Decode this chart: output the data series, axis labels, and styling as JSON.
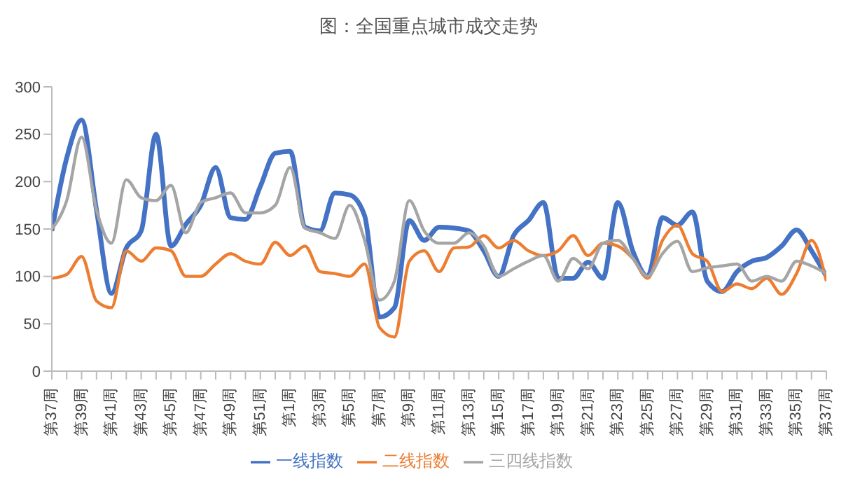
{
  "chart_data": {
    "type": "line",
    "title": "图：全国重点城市成交走势",
    "categories": [
      "第37周",
      null,
      "第39周",
      null,
      "第41周",
      null,
      "第43周",
      null,
      "第45周",
      null,
      "第47周",
      null,
      "第49周",
      null,
      "第51周",
      null,
      "第1周",
      null,
      "第3周",
      null,
      "第5周",
      null,
      "第7周",
      null,
      "第9周",
      null,
      "第11周",
      null,
      "第13周",
      null,
      "第15周",
      null,
      "第17周",
      null,
      "第19周",
      null,
      "第21周",
      null,
      "第23周",
      null,
      "第25周",
      null,
      "第27周",
      null,
      "第29周",
      null,
      "第31周",
      null,
      "第33周",
      null,
      "第35周",
      null,
      "第37周"
    ],
    "series": [
      {
        "name": "一线指数",
        "color": "#4472c4",
        "values": [
          148,
          225,
          265,
          170,
          82,
          130,
          148,
          250,
          132,
          155,
          175,
          215,
          162,
          160,
          195,
          230,
          232,
          152,
          148,
          188,
          186,
          164,
          57,
          67,
          159,
          138,
          152,
          151,
          148,
          127,
          100,
          143,
          159,
          178,
          98,
          98,
          115,
          98,
          178,
          127,
          100,
          162,
          154,
          168,
          95,
          84,
          105,
          116,
          120,
          132,
          149,
          127,
          100
        ]
      },
      {
        "name": "二线指数",
        "color": "#ed7d31",
        "values": [
          98,
          102,
          121,
          74,
          67,
          127,
          116,
          130,
          127,
          100,
          100,
          113,
          124,
          116,
          113,
          136,
          122,
          132,
          105,
          103,
          100,
          113,
          46,
          36,
          116,
          127,
          105,
          130,
          131,
          143,
          130,
          138,
          127,
          122,
          127,
          143,
          122,
          135,
          132,
          119,
          98,
          138,
          154,
          124,
          116,
          84,
          92,
          87,
          98,
          81,
          103,
          138,
          95
        ]
      },
      {
        "name": "三四线指数",
        "color": "#a5a5a5",
        "values": [
          150,
          180,
          247,
          170,
          135,
          202,
          183,
          180,
          196,
          146,
          178,
          183,
          188,
          167,
          167,
          175,
          215,
          151,
          146,
          140,
          175,
          138,
          75,
          95,
          180,
          148,
          135,
          135,
          146,
          132,
          100,
          108,
          116,
          122,
          95,
          119,
          108,
          135,
          138,
          119,
          100,
          124,
          137,
          105,
          109,
          111,
          113,
          95,
          100,
          95,
          116,
          111,
          103
        ]
      }
    ],
    "ylim": [
      0,
      300
    ],
    "yticks": [
      0,
      50,
      100,
      150,
      200,
      250,
      300
    ],
    "legend": "bottom",
    "grid": false,
    "marker": "none",
    "line_style": "solid"
  }
}
